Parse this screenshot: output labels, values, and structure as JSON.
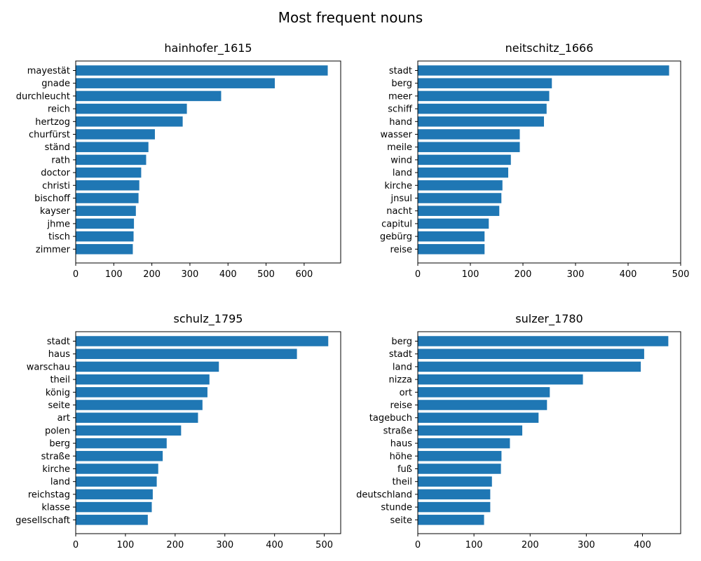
{
  "figure_title": "Most frequent nouns",
  "chart_data": [
    {
      "type": "bar",
      "orientation": "horizontal",
      "title": "hainhofer_1615",
      "categories": [
        "mayestät",
        "gnade",
        "durchleucht",
        "reich",
        "hertzog",
        "churfürst",
        "ständ",
        "rath",
        "doctor",
        "christi",
        "bischoff",
        "kayser",
        "jhme",
        "tisch",
        "zimmer"
      ],
      "values": [
        662,
        523,
        382,
        292,
        281,
        208,
        191,
        185,
        172,
        167,
        165,
        158,
        153,
        152,
        150
      ],
      "xlim": [
        0,
        696
      ],
      "xticks": [
        0,
        100,
        200,
        300,
        400,
        500,
        600
      ],
      "xlabel": "",
      "ylabel": ""
    },
    {
      "type": "bar",
      "orientation": "horizontal",
      "title": "neitschitz_1666",
      "categories": [
        "stadt",
        "berg",
        "meer",
        "schiff",
        "hand",
        "wasser",
        "meile",
        "wind",
        "land",
        "kirche",
        "jnsul",
        "nacht",
        "capitul",
        "gebürg",
        "reise"
      ],
      "values": [
        478,
        255,
        250,
        245,
        240,
        194,
        194,
        177,
        172,
        161,
        159,
        155,
        135,
        127,
        127
      ],
      "xlim": [
        0,
        500
      ],
      "xticks": [
        0,
        100,
        200,
        300,
        400,
        500
      ],
      "xlabel": "",
      "ylabel": ""
    },
    {
      "type": "bar",
      "orientation": "horizontal",
      "title": "schulz_1795",
      "categories": [
        "stadt",
        "haus",
        "warschau",
        "theil",
        "könig",
        "seite",
        "art",
        "polen",
        "berg",
        "straße",
        "kirche",
        "land",
        "reichstag",
        "klasse",
        "gesellschaft"
      ],
      "values": [
        508,
        445,
        288,
        269,
        265,
        255,
        246,
        212,
        183,
        175,
        166,
        163,
        155,
        153,
        145
      ],
      "xlim": [
        0,
        533
      ],
      "xticks": [
        0,
        100,
        200,
        300,
        400,
        500
      ],
      "xlabel": "",
      "ylabel": ""
    },
    {
      "type": "bar",
      "orientation": "horizontal",
      "title": "sulzer_1780",
      "categories": [
        "berg",
        "stadt",
        "land",
        "nizza",
        "ort",
        "reise",
        "tagebuch",
        "straße",
        "haus",
        "höhe",
        "fuß",
        "theil",
        "deutschland",
        "stunde",
        "seite"
      ],
      "values": [
        446,
        403,
        397,
        294,
        235,
        230,
        215,
        186,
        164,
        149,
        148,
        132,
        129,
        129,
        118
      ],
      "xlim": [
        0,
        468
      ],
      "xticks": [
        0,
        100,
        200,
        300,
        400
      ],
      "xlabel": "",
      "ylabel": ""
    }
  ]
}
